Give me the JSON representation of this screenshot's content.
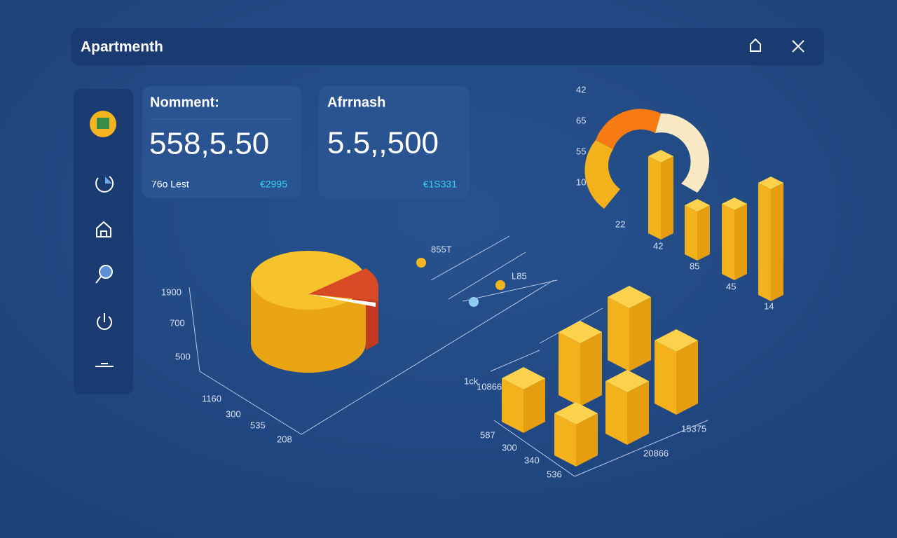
{
  "header": {
    "title": "Apartmenth"
  },
  "cards": [
    {
      "title": "Nomment:",
      "value": "558,5.50",
      "note": "76o Lest",
      "change": "€2995"
    },
    {
      "title": "Afrrnash",
      "value": "5.5,,500",
      "change": "€1S331"
    }
  ],
  "ring_chart": {
    "axis_labels": [
      "42",
      "65",
      "55",
      "10"
    ],
    "bar_labels": [
      "22",
      "42",
      "85",
      "45",
      "14"
    ]
  },
  "legend": [
    "855T",
    "L85"
  ],
  "pie_chart": {
    "axis_labels": [
      "1900",
      "700",
      "500"
    ],
    "base_labels": [
      "1160",
      "300",
      "535",
      "208"
    ]
  },
  "block_chart": {
    "left_labels": [
      "1ck",
      "10866",
      "587",
      "300",
      "340",
      "536"
    ],
    "right_labels": [
      "20866",
      "15375"
    ]
  }
}
